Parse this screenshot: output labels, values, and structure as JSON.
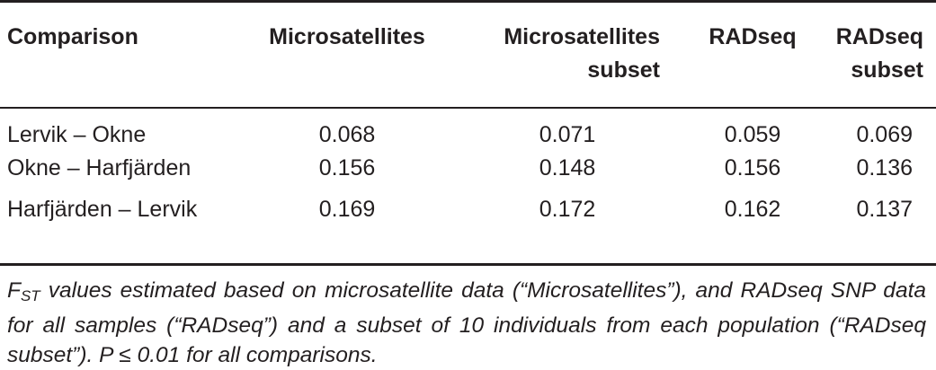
{
  "table": {
    "headers": [
      {
        "line1": "Comparison",
        "line2": ""
      },
      {
        "line1": "Microsatellites",
        "line2": ""
      },
      {
        "line1": "Microsatellites",
        "line2": "subset"
      },
      {
        "line1": "RADseq",
        "line2": ""
      },
      {
        "line1": "RADseq",
        "line2": "subset"
      }
    ],
    "rows": [
      {
        "comparison": "Lervik – Okne",
        "microsatellites": "0.068",
        "microsatellites_subset": "0.071",
        "radseq": "0.059",
        "radseq_subset": "0.069"
      },
      {
        "comparison": "Okne – Harfjärden",
        "microsatellites": "0.156",
        "microsatellites_subset": "0.148",
        "radseq": "0.156",
        "radseq_subset": "0.136"
      },
      {
        "comparison": "Harfjärden – Lervik",
        "microsatellites": "0.169",
        "microsatellites_subset": "0.172",
        "radseq": "0.162",
        "radseq_subset": "0.137"
      }
    ]
  },
  "caption": {
    "symbol": "F",
    "symbol_sub": "ST",
    "text": " values estimated based on microsatellite data (“Microsatellites”), and RADseq SNP data for all samples (“RADseq”) and a subset of 10 individuals from each population (“RADseq subset”). P ≤ 0.01 for all comparisons."
  }
}
